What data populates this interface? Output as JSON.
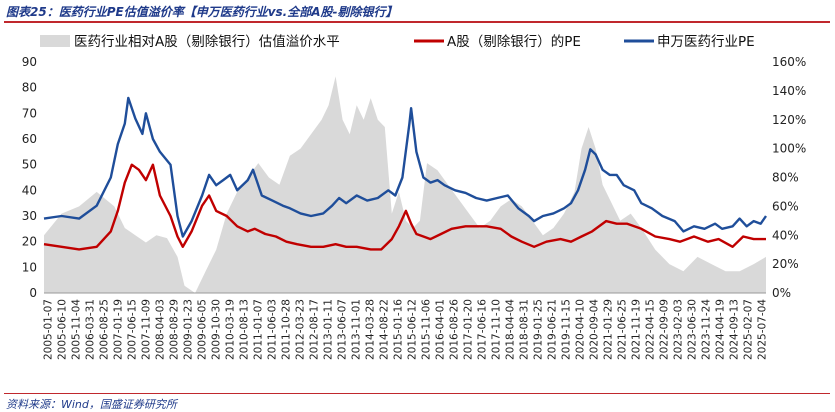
{
  "figure": {
    "title": "图表25：医药行业PE估值溢价率【申万医药行业vs.全部A股-剔除银行】",
    "source": "资料来源：Wind，国盛证券研究所"
  },
  "chart_data": {
    "type": "line",
    "legend": {
      "placement": "top",
      "entries": [
        {
          "name": "医药行业相对A股（剔除银行）估值溢价水平",
          "color": "#d9d9d9",
          "kind": "area"
        },
        {
          "name": "A股（剔除银行）的PE",
          "color": "#c00000",
          "kind": "line"
        },
        {
          "name": "申万医药行业PE",
          "color": "#1f4e9a",
          "kind": "line"
        }
      ]
    },
    "y_left": {
      "min": 0,
      "max": 90,
      "ticks": [
        0,
        10,
        20,
        30,
        40,
        50,
        60,
        70,
        80,
        90
      ]
    },
    "y_right": {
      "min": 0,
      "max": 160,
      "ticks": [
        "0%",
        "20%",
        "40%",
        "60%",
        "80%",
        "100%",
        "120%",
        "140%",
        "160%"
      ]
    },
    "x_tick_labels": [
      "2005-01-07",
      "2005-06-10",
      "2005-11-04",
      "2006-03-31",
      "2006-08-25",
      "2007-01-19",
      "2007-06-15",
      "2007-11-09",
      "2008-04-03",
      "2008-08-29",
      "2009-01-23",
      "2009-06-05",
      "2009-10-30",
      "2010-03-19",
      "2010-08-13",
      "2011-01-07",
      "2011-06-03",
      "2011-10-28",
      "2012-03-23",
      "2012-08-17",
      "2013-01-11",
      "2013-06-07",
      "2013-11-01",
      "2014-03-28",
      "2014-08-22",
      "2015-01-16",
      "2015-06-12",
      "2015-11-06",
      "2016-04-01",
      "2016-08-26",
      "2017-01-20",
      "2017-06-16",
      "2017-11-10",
      "2018-04-04",
      "2018-08-31",
      "2019-01-25",
      "2019-06-21",
      "2019-11-15",
      "2020-04-10",
      "2020-09-04",
      "2021-01-29",
      "2021-06-25",
      "2021-11-19",
      "2022-04-15",
      "2022-09-09",
      "2023-02-03",
      "2023-06-30",
      "2023-11-24",
      "2024-04-19",
      "2024-09-13",
      "2025-02-07",
      "2025-07-04"
    ],
    "series": [
      {
        "name": "申万医药行业PE",
        "axis": "left",
        "x": [
          2005.0,
          2005.5,
          2006.0,
          2006.5,
          2006.9,
          2007.1,
          2007.3,
          2007.4,
          2007.6,
          2007.8,
          2007.9,
          2008.1,
          2008.3,
          2008.6,
          2008.8,
          2008.95,
          2009.2,
          2009.5,
          2009.7,
          2009.9,
          2010.1,
          2010.3,
          2010.5,
          2010.8,
          2010.95,
          2011.2,
          2011.5,
          2011.8,
          2012.0,
          2012.3,
          2012.6,
          2012.95,
          2013.2,
          2013.4,
          2013.6,
          2013.9,
          2014.2,
          2014.5,
          2014.8,
          2015.0,
          2015.2,
          2015.4,
          2015.45,
          2015.6,
          2015.8,
          2016.0,
          2016.2,
          2016.4,
          2016.7,
          2017.0,
          2017.3,
          2017.6,
          2017.9,
          2018.2,
          2018.5,
          2018.8,
          2018.95,
          2019.2,
          2019.5,
          2019.8,
          2020.0,
          2020.2,
          2020.4,
          2020.55,
          2020.7,
          2020.9,
          2021.1,
          2021.3,
          2021.5,
          2021.8,
          2022.0,
          2022.3,
          2022.6,
          2022.95,
          2023.2,
          2023.5,
          2023.8,
          2024.1,
          2024.3,
          2024.6,
          2024.8,
          2025.0,
          2025.2,
          2025.4,
          2025.55
        ],
        "values": [
          29,
          30,
          29,
          34,
          45,
          58,
          66,
          76,
          68,
          62,
          70,
          60,
          55,
          50,
          30,
          22,
          28,
          38,
          46,
          42,
          44,
          46,
          40,
          44,
          48,
          38,
          36,
          34,
          33,
          31,
          30,
          31,
          34,
          37,
          35,
          38,
          36,
          37,
          40,
          38,
          45,
          66,
          72,
          55,
          45,
          43,
          44,
          42,
          40,
          39,
          37,
          36,
          37,
          38,
          33,
          30,
          28,
          30,
          31,
          33,
          35,
          40,
          48,
          56,
          54,
          48,
          46,
          46,
          42,
          40,
          35,
          33,
          30,
          28,
          24,
          26,
          25,
          27,
          25,
          26,
          29,
          26,
          28,
          27,
          30
        ]
      },
      {
        "name": "A股（剔除银行）的PE",
        "axis": "left",
        "x": [
          2005.0,
          2005.5,
          2006.0,
          2006.5,
          2006.9,
          2007.1,
          2007.3,
          2007.5,
          2007.7,
          2007.9,
          2008.1,
          2008.3,
          2008.6,
          2008.8,
          2008.95,
          2009.2,
          2009.5,
          2009.7,
          2009.9,
          2010.2,
          2010.5,
          2010.8,
          2011.0,
          2011.3,
          2011.6,
          2011.9,
          2012.2,
          2012.6,
          2012.95,
          2013.3,
          2013.6,
          2013.9,
          2014.3,
          2014.6,
          2014.9,
          2015.1,
          2015.3,
          2015.45,
          2015.6,
          2015.8,
          2016.0,
          2016.3,
          2016.6,
          2017.0,
          2017.3,
          2017.6,
          2018.0,
          2018.3,
          2018.6,
          2018.95,
          2019.3,
          2019.7,
          2020.0,
          2020.3,
          2020.6,
          2021.0,
          2021.3,
          2021.6,
          2022.0,
          2022.4,
          2022.8,
          2023.1,
          2023.5,
          2023.9,
          2024.2,
          2024.6,
          2024.9,
          2025.2,
          2025.55
        ],
        "values": [
          19,
          18,
          17,
          18,
          24,
          32,
          43,
          50,
          48,
          44,
          50,
          38,
          30,
          22,
          18,
          24,
          34,
          38,
          32,
          30,
          26,
          24,
          25,
          23,
          22,
          20,
          19,
          18,
          18,
          19,
          18,
          18,
          17,
          17,
          21,
          26,
          32,
          27,
          23,
          22,
          21,
          23,
          25,
          26,
          26,
          26,
          25,
          22,
          20,
          18,
          20,
          21,
          20,
          22,
          24,
          28,
          27,
          27,
          25,
          22,
          21,
          20,
          22,
          20,
          21,
          18,
          22,
          21,
          21
        ]
      },
      {
        "name": "医药行业相对A股（剔除银行）估值溢价水平",
        "axis": "right",
        "x": [
          2005.0,
          2005.5,
          2006.0,
          2006.5,
          2007.0,
          2007.3,
          2007.6,
          2007.9,
          2008.2,
          2008.5,
          2008.8,
          2009.0,
          2009.3,
          2009.6,
          2009.9,
          2010.2,
          2010.5,
          2010.8,
          2011.1,
          2011.4,
          2011.7,
          2012.0,
          2012.3,
          2012.6,
          2012.9,
          2013.1,
          2013.3,
          2013.5,
          2013.7,
          2013.9,
          2014.1,
          2014.3,
          2014.5,
          2014.7,
          2014.9,
          2015.1,
          2015.3,
          2015.5,
          2015.7,
          2015.9,
          2016.2,
          2016.5,
          2016.8,
          2017.1,
          2017.4,
          2017.7,
          2018.0,
          2018.3,
          2018.6,
          2018.9,
          2019.2,
          2019.5,
          2019.8,
          2020.1,
          2020.3,
          2020.5,
          2020.7,
          2020.9,
          2021.1,
          2021.4,
          2021.7,
          2022.0,
          2022.4,
          2022.8,
          2023.2,
          2023.6,
          2024.0,
          2024.4,
          2024.8,
          2025.2,
          2025.55
        ],
        "values": [
          40,
          55,
          60,
          70,
          60,
          45,
          40,
          35,
          40,
          38,
          25,
          5,
          0,
          15,
          30,
          55,
          70,
          80,
          90,
          80,
          75,
          95,
          100,
          110,
          120,
          130,
          150,
          120,
          110,
          130,
          120,
          135,
          120,
          115,
          55,
          70,
          50,
          45,
          50,
          90,
          85,
          75,
          65,
          55,
          45,
          50,
          60,
          65,
          60,
          50,
          40,
          45,
          55,
          70,
          100,
          115,
          100,
          75,
          65,
          50,
          55,
          45,
          30,
          20,
          15,
          25,
          20,
          15,
          15,
          20,
          25
        ]
      }
    ]
  }
}
